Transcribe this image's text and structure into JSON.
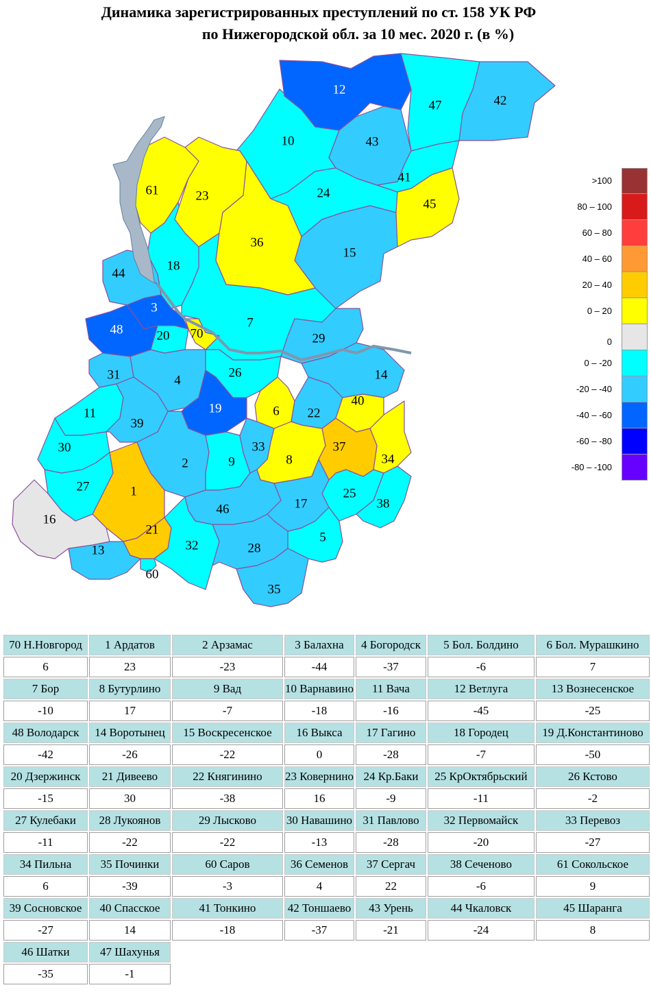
{
  "title": {
    "line1": "Динамика зарегистрированных преступлений по ст. 158 УК РФ",
    "line2": "по Нижегородской обл. за 10 мес. 2020 г. (в %)"
  },
  "legend": [
    {
      "label": ">100",
      "color": "#993333"
    },
    {
      "label": "80 – 100",
      "color": "#d91a1a"
    },
    {
      "label": "60 – 80",
      "color": "#ff3d3d"
    },
    {
      "label": "40 – 60",
      "color": "#ff9933"
    },
    {
      "label": "20 – 40",
      "color": "#ffcc00"
    },
    {
      "label": "0 – 20",
      "color": "#ffff00"
    },
    {
      "label": "0",
      "color": "#e6e6e6"
    },
    {
      "label": "0 – -20",
      "color": "#00ffff"
    },
    {
      "label": "-20 – -40",
      "color": "#33ccff"
    },
    {
      "label": "-40 – -60",
      "color": "#0066ff"
    },
    {
      "label": "-60 – -80",
      "color": "#0000ff"
    },
    {
      "label": "-80 – -100",
      "color": "#6600ff"
    }
  ],
  "map_labels": [
    "12",
    "47",
    "42",
    "10",
    "43",
    "41",
    "45",
    "61",
    "23",
    "36",
    "24",
    "15",
    "18",
    "44",
    "3",
    "48",
    "20",
    "70",
    "7",
    "29",
    "31",
    "4",
    "26",
    "14",
    "19",
    "6",
    "22",
    "40",
    "11",
    "39",
    "30",
    "2",
    "9",
    "33",
    "8",
    "37",
    "34",
    "27",
    "1",
    "25",
    "38",
    "46",
    "17",
    "16",
    "21",
    "13",
    "32",
    "28",
    "5",
    "35",
    "60"
  ],
  "districts": [
    {
      "name": "70 Н.Новгород",
      "value": "6"
    },
    {
      "name": "1 Ардатов",
      "value": "23"
    },
    {
      "name": "2 Арзамас",
      "value": "-23"
    },
    {
      "name": "3 Балахна",
      "value": "-44"
    },
    {
      "name": "4 Богородск",
      "value": "-37"
    },
    {
      "name": "5 Бол. Болдино",
      "value": "-6"
    },
    {
      "name": "6 Бол. Мурашкино",
      "value": "7"
    },
    {
      "name": "7 Бор",
      "value": "-10"
    },
    {
      "name": "8 Бутурлино",
      "value": "17"
    },
    {
      "name": "9 Вад",
      "value": "-7"
    },
    {
      "name": "10 Варнавино",
      "value": "-18"
    },
    {
      "name": "11 Вача",
      "value": "-16"
    },
    {
      "name": "12 Ветлуга",
      "value": "-45"
    },
    {
      "name": "13 Вознесенское",
      "value": "-25"
    },
    {
      "name": "48 Володарск",
      "value": "-42"
    },
    {
      "name": "14 Воротынец",
      "value": "-26"
    },
    {
      "name": "15 Воскресенское",
      "value": "-22"
    },
    {
      "name": "16 Выкса",
      "value": "0"
    },
    {
      "name": "17 Гагино",
      "value": "-28"
    },
    {
      "name": "18 Городец",
      "value": "-7"
    },
    {
      "name": "19 Д.Константиново",
      "value": "-50"
    },
    {
      "name": "20 Дзержинск",
      "value": "-15"
    },
    {
      "name": "21 Дивеево",
      "value": "30"
    },
    {
      "name": "22 Княгинино",
      "value": "-38"
    },
    {
      "name": "23 Ковернино",
      "value": "16"
    },
    {
      "name": "24 Кр.Баки",
      "value": "-9"
    },
    {
      "name": "25 КрОктябрьский",
      "value": "-11"
    },
    {
      "name": "26 Кстово",
      "value": "-2"
    },
    {
      "name": "27 Кулебаки",
      "value": "-11"
    },
    {
      "name": "28 Лукоянов",
      "value": "-22"
    },
    {
      "name": "29 Лысково",
      "value": "-22"
    },
    {
      "name": "30 Навашино",
      "value": "-13"
    },
    {
      "name": "31 Павлово",
      "value": "-28"
    },
    {
      "name": "32 Первомайск",
      "value": "-20"
    },
    {
      "name": "33 Перевоз",
      "value": "-27"
    },
    {
      "name": "34 Пильна",
      "value": "6"
    },
    {
      "name": "35 Починки",
      "value": "-39"
    },
    {
      "name": "60 Саров",
      "value": "-3"
    },
    {
      "name": "36 Семенов",
      "value": "4"
    },
    {
      "name": "37 Сергач",
      "value": "22"
    },
    {
      "name": "38 Сеченово",
      "value": "-6"
    },
    {
      "name": "61 Сокольское",
      "value": "9"
    },
    {
      "name": "39 Сосновское",
      "value": "-27"
    },
    {
      "name": "40 Спасское",
      "value": "14"
    },
    {
      "name": "41 Тонкино",
      "value": "-18"
    },
    {
      "name": "42 Тоншаево",
      "value": "-37"
    },
    {
      "name": "43 Урень",
      "value": "-21"
    },
    {
      "name": "44 Чкаловск",
      "value": "-24"
    },
    {
      "name": "45 Шаранга",
      "value": "8"
    },
    {
      "name": "46 Шатки",
      "value": "-35"
    },
    {
      "name": "47 Шахунья",
      "value": "-1"
    }
  ]
}
